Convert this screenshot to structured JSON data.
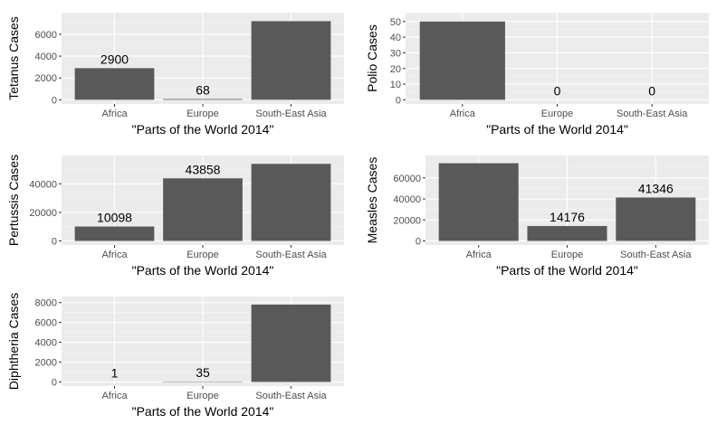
{
  "chart_data": [
    {
      "type": "bar",
      "categories": [
        "Africa",
        "Europe",
        "South-East Asia"
      ],
      "values": [
        2900,
        68,
        7200
      ],
      "data_labels": [
        "2900",
        "68",
        ""
      ],
      "xlabel": "\"Parts of the World 2014\"",
      "ylabel": "Tetanus Cases",
      "yticks": [
        0,
        2000,
        4000,
        6000
      ],
      "ylim": [
        0,
        7600
      ],
      "bar_color": "#595959",
      "panel_color": "#ebebeb"
    },
    {
      "type": "bar",
      "categories": [
        "Africa",
        "Europe",
        "South-East Asia"
      ],
      "values": [
        50,
        0,
        0
      ],
      "data_labels": [
        "",
        "0",
        "0"
      ],
      "xlabel": "\"Parts of the World 2014\"",
      "ylabel": "Polio Cases",
      "yticks": [
        0,
        10,
        20,
        30,
        40,
        50
      ],
      "ylim": [
        0,
        53
      ],
      "bar_color": "#595959",
      "panel_color": "#ebebeb"
    },
    {
      "type": "bar",
      "categories": [
        "Africa",
        "Europe",
        "South-East Asia"
      ],
      "values": [
        10098,
        43858,
        54000
      ],
      "data_labels": [
        "10098",
        "43858",
        ""
      ],
      "xlabel": "\"Parts of the World 2014\"",
      "ylabel": "Pertussis Cases",
      "yticks": [
        0,
        20000,
        40000
      ],
      "ylim": [
        0,
        57000
      ],
      "bar_color": "#595959",
      "panel_color": "#ebebeb"
    },
    {
      "type": "bar",
      "categories": [
        "Africa",
        "Europe",
        "South-East Asia"
      ],
      "values": [
        74000,
        14176,
        41346
      ],
      "data_labels": [
        "",
        "14176",
        "41346"
      ],
      "xlabel": "\"Parts of the World 2014\"",
      "ylabel": "Measles Cases",
      "yticks": [
        0,
        20000,
        40000,
        60000
      ],
      "ylim": [
        0,
        77500
      ],
      "bar_color": "#595959",
      "panel_color": "#ebebeb"
    },
    {
      "type": "bar",
      "categories": [
        "Africa",
        "Europe",
        "South-East Asia"
      ],
      "values": [
        1,
        35,
        7800
      ],
      "data_labels": [
        "1",
        "35",
        ""
      ],
      "xlabel": "\"Parts of the World 2014\"",
      "ylabel": "Diphtheria Cases",
      "yticks": [
        0,
        2000,
        4000,
        6000,
        8000
      ],
      "ylim": [
        0,
        8200
      ],
      "bar_color": "#595959",
      "panel_color": "#ebebeb"
    }
  ]
}
